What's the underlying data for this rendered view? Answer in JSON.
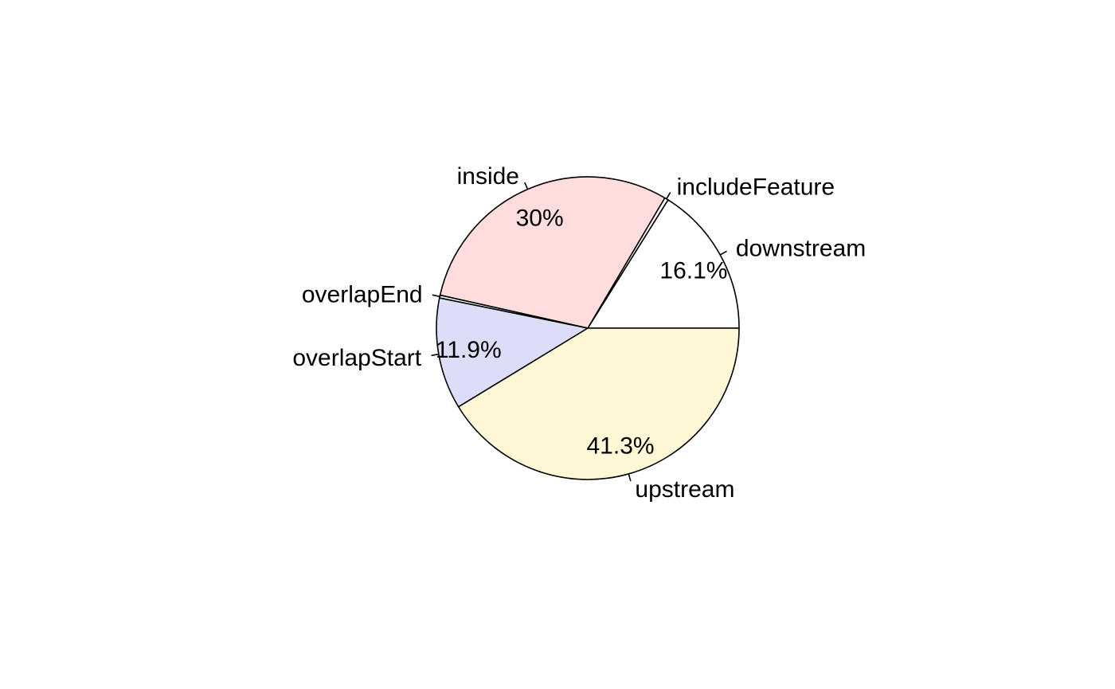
{
  "chart_data": {
    "type": "pie",
    "direction": "counterclockwise",
    "start": "3 o'clock",
    "legend": "none",
    "slices": [
      {
        "label": "downstream",
        "value": 16.1,
        "pct_label": "16.1%",
        "color": "#FFFFFF"
      },
      {
        "label": "includeFeature",
        "value": 0.4,
        "pct_label": "",
        "color": "#FFFFFF"
      },
      {
        "label": "inside",
        "value": 30.0,
        "pct_label": "30%",
        "color": "#FFDDDD"
      },
      {
        "label": "overlapEnd",
        "value": 0.3,
        "pct_label": "",
        "color": "#DDFFFF"
      },
      {
        "label": "overlapStart",
        "value": 11.9,
        "pct_label": "11.9%",
        "color": "#DDDDF9"
      },
      {
        "label": "upstream",
        "value": 41.3,
        "pct_label": "41.3%",
        "color": "#FFF7D6"
      }
    ]
  }
}
